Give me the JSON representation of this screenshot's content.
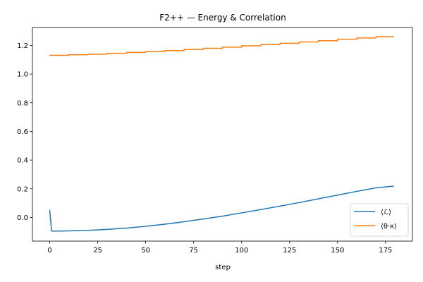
{
  "chart_data": {
    "type": "line",
    "title": "F2++ — Energy & Correlation",
    "xlabel": "step",
    "ylabel": "",
    "xlim": [
      -9,
      189
    ],
    "ylim": [
      -0.165,
      1.325
    ],
    "xticks": [
      0,
      25,
      50,
      75,
      100,
      125,
      150,
      175
    ],
    "xtick_labels": [
      "0",
      "25",
      "50",
      "75",
      "100",
      "125",
      "150",
      "175"
    ],
    "yticks": [
      0.0,
      0.2,
      0.4,
      0.6,
      0.8,
      1.0,
      1.2
    ],
    "ytick_labels": [
      "0.0",
      "0.2",
      "0.4",
      "0.6",
      "0.8",
      "1.0",
      "1.2"
    ],
    "grid": false,
    "legend_placement": "lower-right",
    "series": [
      {
        "name": "⟨ℒ⟩",
        "color": "#1f77b4",
        "x": [
          0,
          1,
          5,
          10,
          20,
          30,
          40,
          50,
          60,
          70,
          80,
          90,
          100,
          110,
          120,
          130,
          140,
          150,
          160,
          170,
          179
        ],
        "y": [
          0.05,
          -0.095,
          -0.095,
          -0.094,
          -0.09,
          -0.083,
          -0.074,
          -0.062,
          -0.047,
          -0.03,
          -0.011,
          0.009,
          0.032,
          0.055,
          0.079,
          0.104,
          0.13,
          0.156,
          0.182,
          0.207,
          0.218
        ]
      },
      {
        "name": "⟨θ·κ⟩",
        "color": "#ff7f0e",
        "x": [
          0,
          10,
          10,
          20,
          20,
          30,
          30,
          40,
          40,
          50,
          50,
          60,
          60,
          70,
          70,
          80,
          80,
          90,
          90,
          100,
          100,
          110,
          110,
          120,
          120,
          130,
          130,
          140,
          140,
          150,
          150,
          160,
          160,
          170,
          170,
          179
        ],
        "y": [
          1.131,
          1.131,
          1.135,
          1.135,
          1.139,
          1.139,
          1.145,
          1.145,
          1.151,
          1.151,
          1.157,
          1.157,
          1.164,
          1.164,
          1.172,
          1.172,
          1.18,
          1.18,
          1.188,
          1.188,
          1.197,
          1.197,
          1.206,
          1.206,
          1.215,
          1.215,
          1.224,
          1.224,
          1.233,
          1.233,
          1.243,
          1.243,
          1.252,
          1.252,
          1.261,
          1.261
        ]
      }
    ]
  }
}
